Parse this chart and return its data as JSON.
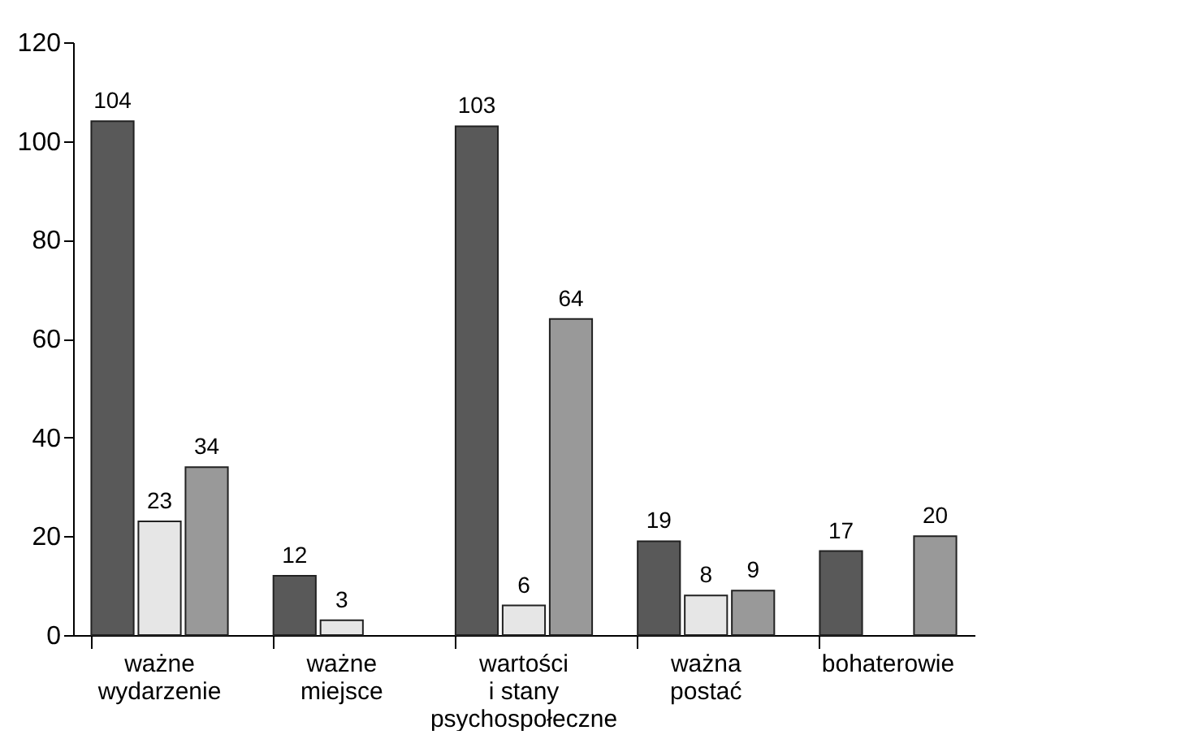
{
  "chart_data": {
    "type": "bar",
    "categories": [
      "ważne\nwydarzenie",
      "ważne\nmiejsce",
      "wartości\ni stany\npsychospołeczne",
      "ważna\npostać",
      "bohaterowie"
    ],
    "series": [
      {
        "color": "#595959",
        "values": [
          104,
          12,
          103,
          19,
          17
        ]
      },
      {
        "color": "#e6e6e6",
        "values": [
          23,
          3,
          6,
          8,
          null
        ]
      },
      {
        "color": "#999999",
        "values": [
          34,
          null,
          64,
          9,
          20
        ]
      }
    ],
    "ylim": [
      0,
      120
    ],
    "yticks": [
      0,
      20,
      40,
      60,
      80,
      100,
      120
    ],
    "data_labels": true,
    "grid": false
  }
}
